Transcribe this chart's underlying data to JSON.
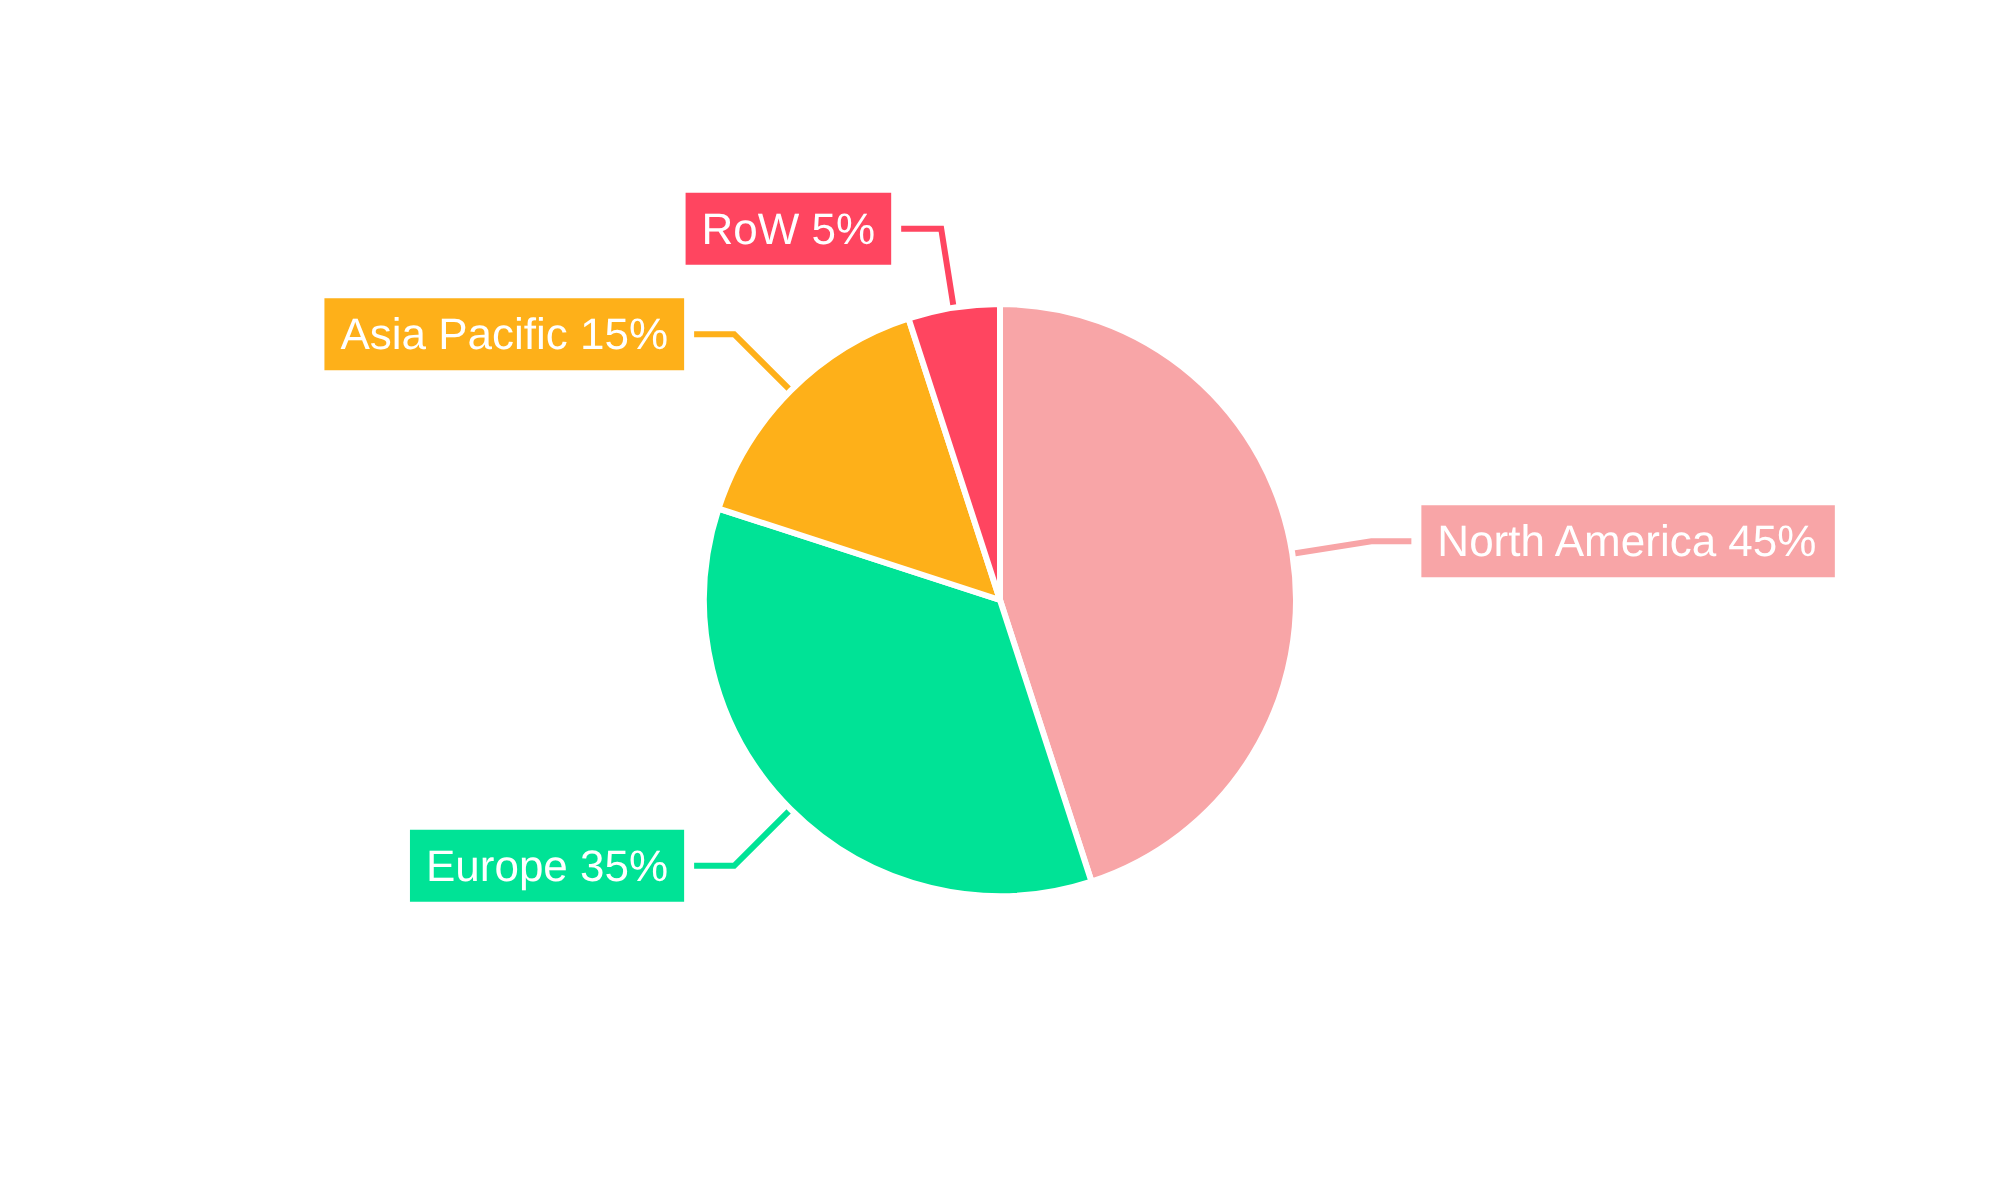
{
  "chart_data": {
    "type": "pie",
    "categories": [
      "North America",
      "Europe",
      "Asia Pacific",
      "RoW"
    ],
    "values": [
      45,
      35,
      15,
      5
    ],
    "value_labels": [
      "45%",
      "35%",
      "15%",
      "5%"
    ],
    "colors": [
      "#f8a5a7",
      "#00e396",
      "#feb019",
      "#ff4560"
    ],
    "legend": false
  }
}
